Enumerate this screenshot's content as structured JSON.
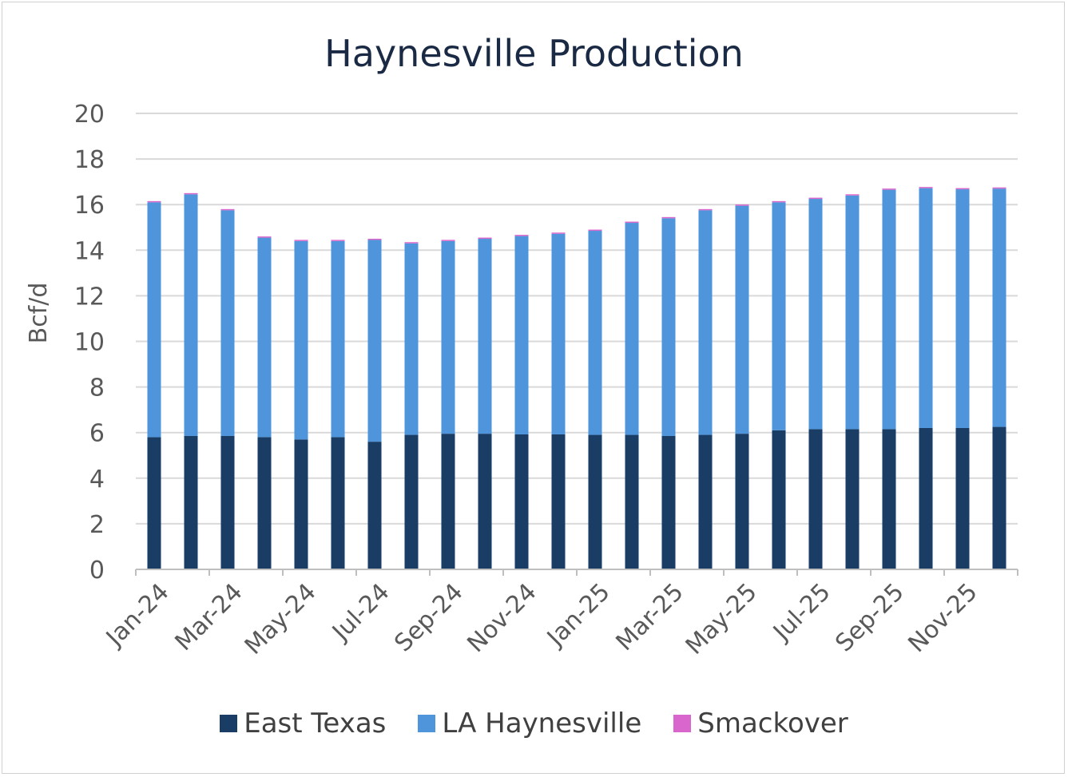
{
  "chart_data": {
    "type": "bar",
    "stacked": true,
    "title": "Haynesville Production",
    "xlabel": "",
    "ylabel": "Bcf/d",
    "ylim": [
      0,
      20
    ],
    "yticks": [
      0,
      2,
      4,
      6,
      8,
      10,
      12,
      14,
      16,
      18,
      20
    ],
    "grid": true,
    "legend_position": "bottom",
    "categories": [
      "Jan-24",
      "Feb-24",
      "Mar-24",
      "Apr-24",
      "May-24",
      "Jun-24",
      "Jul-24",
      "Aug-24",
      "Sep-24",
      "Oct-24",
      "Nov-24",
      "Dec-24",
      "Jan-25",
      "Feb-25",
      "Mar-25",
      "Apr-25",
      "May-25",
      "Jun-25",
      "Jul-25",
      "Aug-25",
      "Sep-25",
      "Oct-25",
      "Nov-25",
      "Dec-25"
    ],
    "xtick_labels": [
      "Jan-24",
      "Mar-24",
      "May-24",
      "Jul-24",
      "Sep-24",
      "Nov-24",
      "Jan-25",
      "Mar-25",
      "May-25",
      "Jul-25",
      "Sep-25",
      "Nov-25"
    ],
    "series": [
      {
        "name": "East Texas",
        "color": "#1a3d66",
        "values": [
          5.8,
          5.85,
          5.85,
          5.8,
          5.7,
          5.8,
          5.6,
          5.9,
          5.95,
          5.95,
          5.92,
          5.92,
          5.9,
          5.9,
          5.85,
          5.9,
          5.95,
          6.1,
          6.15,
          6.15,
          6.15,
          6.2,
          6.2,
          6.25
        ]
      },
      {
        "name": "LA Haynesville",
        "color": "#4f95db",
        "values": [
          10.3,
          10.6,
          9.9,
          8.75,
          8.7,
          8.6,
          8.85,
          8.4,
          8.45,
          8.55,
          8.7,
          8.8,
          8.95,
          9.3,
          9.55,
          9.85,
          10.0,
          10.0,
          10.1,
          10.25,
          10.5,
          10.52,
          10.47,
          10.45
        ]
      },
      {
        "name": "Smackover",
        "color": "#d966cc",
        "values": [
          0.05,
          0.05,
          0.05,
          0.05,
          0.05,
          0.05,
          0.05,
          0.05,
          0.05,
          0.05,
          0.05,
          0.05,
          0.05,
          0.05,
          0.05,
          0.05,
          0.05,
          0.05,
          0.05,
          0.05,
          0.05,
          0.05,
          0.05,
          0.05
        ]
      }
    ]
  }
}
